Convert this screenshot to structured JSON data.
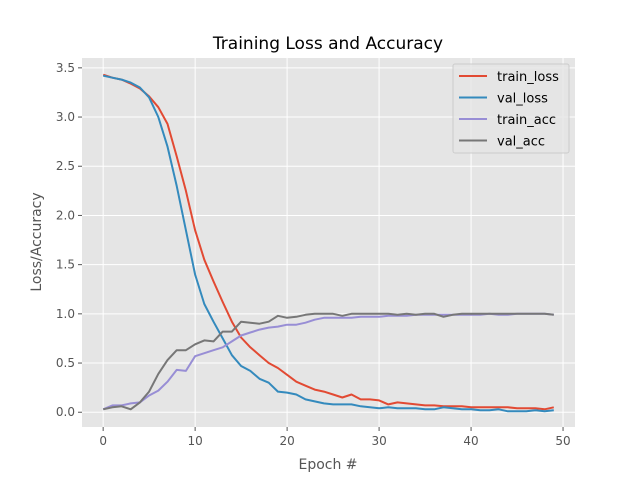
{
  "chart_data": {
    "type": "line",
    "title": "Training Loss and Accuracy",
    "xlabel": "Epoch #",
    "ylabel": "Loss/Accuracy",
    "xlim": [
      -2.3,
      51.3
    ],
    "ylim": [
      -0.15,
      3.6
    ],
    "xticks": [
      0,
      10,
      20,
      30,
      40,
      50
    ],
    "yticks": [
      0.0,
      0.5,
      1.0,
      1.5,
      2.0,
      2.5,
      3.0,
      3.5
    ],
    "ytick_labels": [
      "0.0",
      "0.5",
      "1.0",
      "1.5",
      "2.0",
      "2.5",
      "3.0",
      "3.5"
    ],
    "grid": true,
    "background": "#e5e5e5",
    "legend_position": "top-right",
    "x": [
      0,
      1,
      2,
      3,
      4,
      5,
      6,
      7,
      8,
      9,
      10,
      11,
      12,
      13,
      14,
      15,
      16,
      17,
      18,
      19,
      20,
      21,
      22,
      23,
      24,
      25,
      26,
      27,
      28,
      29,
      30,
      31,
      32,
      33,
      34,
      35,
      36,
      37,
      38,
      39,
      40,
      41,
      42,
      43,
      44,
      45,
      46,
      47,
      48,
      49
    ],
    "series": [
      {
        "name": "train_loss",
        "color": "#e24a33",
        "values": [
          3.43,
          3.4,
          3.38,
          3.34,
          3.29,
          3.21,
          3.1,
          2.93,
          2.6,
          2.25,
          1.85,
          1.55,
          1.33,
          1.12,
          0.92,
          0.76,
          0.66,
          0.58,
          0.5,
          0.45,
          0.38,
          0.31,
          0.27,
          0.23,
          0.21,
          0.18,
          0.15,
          0.18,
          0.13,
          0.13,
          0.12,
          0.08,
          0.1,
          0.09,
          0.08,
          0.07,
          0.07,
          0.06,
          0.06,
          0.06,
          0.05,
          0.05,
          0.05,
          0.05,
          0.05,
          0.04,
          0.04,
          0.04,
          0.03,
          0.05
        ]
      },
      {
        "name": "val_loss",
        "color": "#348abd",
        "values": [
          3.42,
          3.4,
          3.38,
          3.35,
          3.3,
          3.2,
          3.0,
          2.7,
          2.3,
          1.85,
          1.4,
          1.1,
          0.92,
          0.75,
          0.58,
          0.47,
          0.42,
          0.34,
          0.3,
          0.21,
          0.2,
          0.18,
          0.13,
          0.11,
          0.09,
          0.08,
          0.08,
          0.08,
          0.06,
          0.05,
          0.04,
          0.05,
          0.04,
          0.04,
          0.04,
          0.03,
          0.03,
          0.05,
          0.04,
          0.03,
          0.03,
          0.02,
          0.02,
          0.03,
          0.01,
          0.01,
          0.01,
          0.02,
          0.01,
          0.02
        ]
      },
      {
        "name": "train_acc",
        "color": "#988ed5",
        "values": [
          0.03,
          0.07,
          0.07,
          0.09,
          0.1,
          0.17,
          0.22,
          0.31,
          0.43,
          0.42,
          0.57,
          0.6,
          0.63,
          0.66,
          0.72,
          0.78,
          0.81,
          0.84,
          0.86,
          0.87,
          0.89,
          0.89,
          0.91,
          0.94,
          0.96,
          0.96,
          0.96,
          0.96,
          0.97,
          0.97,
          0.97,
          0.98,
          0.98,
          0.98,
          0.99,
          0.99,
          0.99,
          0.99,
          0.99,
          0.99,
          0.99,
          0.99,
          1.0,
          0.99,
          0.99,
          1.0,
          1.0,
          1.0,
          1.0,
          0.99
        ]
      },
      {
        "name": "val_acc",
        "color": "#777777",
        "values": [
          0.03,
          0.05,
          0.06,
          0.03,
          0.1,
          0.21,
          0.39,
          0.53,
          0.63,
          0.63,
          0.69,
          0.73,
          0.72,
          0.82,
          0.82,
          0.92,
          0.91,
          0.9,
          0.92,
          0.98,
          0.96,
          0.97,
          0.99,
          1.0,
          1.0,
          1.0,
          0.98,
          1.0,
          1.0,
          1.0,
          1.0,
          1.0,
          0.99,
          1.0,
          0.99,
          1.0,
          1.0,
          0.97,
          0.99,
          1.0,
          1.0,
          1.0,
          1.0,
          1.0,
          1.0,
          1.0,
          1.0,
          1.0,
          1.0,
          0.99
        ]
      }
    ]
  }
}
